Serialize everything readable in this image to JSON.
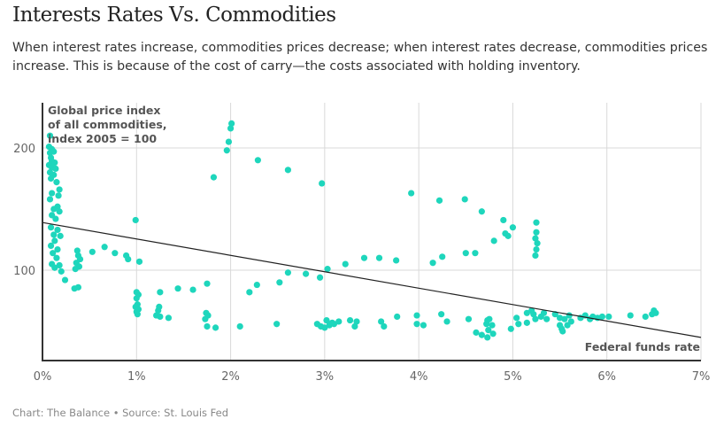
{
  "header": {
    "title": "Interests Rates Vs. Commodities",
    "subtitle": "When interest rates increase, commodities prices decrease; when interest rates decrease, commodities prices increase. This is because of the cost of carry—the costs associated with holding inventory."
  },
  "footer": "Chart: The Balance • Source: St. Louis Fed",
  "colors": {
    "point": "#1ed6bc",
    "trend": "#222222",
    "grid": "#d9d9d9",
    "axis": "#333333"
  },
  "chart_data": {
    "type": "scatter",
    "title": "Interests Rates Vs. Commodities",
    "xlabel": "Federal funds rate",
    "ylabel": "Global price index of all commodities, index 2005 = 100",
    "ylabel_lines": [
      "Global price index",
      "of all commodities,",
      "index 2005 = 100"
    ],
    "xlim": [
      0,
      7
    ],
    "ylim": [
      28,
      215
    ],
    "x_ticks": [
      0,
      1,
      2,
      3,
      4,
      5,
      6,
      7
    ],
    "x_tick_labels": [
      "0%",
      "1%",
      "2%",
      "3%",
      "4%",
      "5%",
      "6%",
      "7%"
    ],
    "y_ticks": [
      100,
      200
    ],
    "y_tick_labels": [
      "100",
      "200"
    ],
    "grid": true,
    "trendline": {
      "x": [
        0,
        7
      ],
      "y": [
        139,
        45
      ]
    },
    "points": [
      [
        0.08,
        210
      ],
      [
        0.07,
        201
      ],
      [
        0.1,
        199
      ],
      [
        0.08,
        196
      ],
      [
        0.12,
        197
      ],
      [
        0.09,
        192
      ],
      [
        0.1,
        189
      ],
      [
        0.13,
        188
      ],
      [
        0.07,
        186
      ],
      [
        0.1,
        184
      ],
      [
        0.14,
        183
      ],
      [
        0.08,
        180
      ],
      [
        0.12,
        178
      ],
      [
        0.09,
        175
      ],
      [
        0.15,
        172
      ],
      [
        0.18,
        166
      ],
      [
        0.1,
        163
      ],
      [
        0.17,
        161
      ],
      [
        0.08,
        158
      ],
      [
        0.16,
        152
      ],
      [
        0.12,
        150
      ],
      [
        0.18,
        148
      ],
      [
        0.1,
        145
      ],
      [
        0.14,
        142
      ],
      [
        0.09,
        135
      ],
      [
        0.16,
        133
      ],
      [
        0.12,
        129
      ],
      [
        0.19,
        128
      ],
      [
        0.13,
        124
      ],
      [
        0.09,
        120
      ],
      [
        0.16,
        117
      ],
      [
        0.11,
        114
      ],
      [
        0.15,
        110
      ],
      [
        0.1,
        105
      ],
      [
        0.18,
        104
      ],
      [
        0.13,
        102
      ],
      [
        0.2,
        99
      ],
      [
        0.24,
        92
      ],
      [
        0.37,
        116
      ],
      [
        0.38,
        112
      ],
      [
        0.4,
        109
      ],
      [
        0.36,
        106
      ],
      [
        0.39,
        103
      ],
      [
        0.35,
        101
      ],
      [
        0.34,
        85
      ],
      [
        0.38,
        86
      ],
      [
        0.53,
        115
      ],
      [
        0.66,
        119
      ],
      [
        0.77,
        114
      ],
      [
        0.89,
        112
      ],
      [
        0.91,
        109
      ],
      [
        0.99,
        141
      ],
      [
        1.03,
        107
      ],
      [
        1.0,
        82
      ],
      [
        1.02,
        80
      ],
      [
        1.0,
        77
      ],
      [
        1.01,
        72
      ],
      [
        0.99,
        70
      ],
      [
        1.02,
        68
      ],
      [
        1.0,
        66
      ],
      [
        1.01,
        64
      ],
      [
        1.25,
        82
      ],
      [
        1.24,
        70
      ],
      [
        1.23,
        67
      ],
      [
        1.21,
        63
      ],
      [
        1.25,
        62
      ],
      [
        1.34,
        61
      ],
      [
        1.44,
        85
      ],
      [
        1.6,
        84
      ],
      [
        1.75,
        89
      ],
      [
        1.74,
        65
      ],
      [
        1.76,
        63
      ],
      [
        1.73,
        60
      ],
      [
        1.75,
        54
      ],
      [
        1.84,
        53
      ],
      [
        1.82,
        176
      ],
      [
        1.98,
        205
      ],
      [
        1.96,
        198
      ],
      [
        2.0,
        216
      ],
      [
        2.01,
        220
      ],
      [
        2.2,
        82
      ],
      [
        2.1,
        54
      ],
      [
        2.28,
        88
      ],
      [
        2.29,
        190
      ],
      [
        2.52,
        90
      ],
      [
        2.49,
        56
      ],
      [
        2.61,
        98
      ],
      [
        2.61,
        182
      ],
      [
        2.8,
        97
      ],
      [
        2.97,
        171
      ],
      [
        2.95,
        94
      ],
      [
        3.03,
        101
      ],
      [
        2.92,
        56
      ],
      [
        2.96,
        54
      ],
      [
        3.0,
        53
      ],
      [
        3.05,
        55
      ],
      [
        3.1,
        56
      ],
      [
        3.02,
        59
      ],
      [
        3.08,
        57
      ],
      [
        3.15,
        58
      ],
      [
        3.22,
        105
      ],
      [
        3.27,
        59
      ],
      [
        3.32,
        54
      ],
      [
        3.34,
        58
      ],
      [
        3.42,
        110
      ],
      [
        3.58,
        110
      ],
      [
        3.6,
        58
      ],
      [
        3.63,
        54
      ],
      [
        3.76,
        108
      ],
      [
        3.77,
        62
      ],
      [
        3.92,
        163
      ],
      [
        3.98,
        63
      ],
      [
        3.98,
        56
      ],
      [
        4.05,
        55
      ],
      [
        4.15,
        106
      ],
      [
        4.22,
        157
      ],
      [
        4.25,
        111
      ],
      [
        4.24,
        64
      ],
      [
        4.3,
        58
      ],
      [
        4.49,
        158
      ],
      [
        4.5,
        114
      ],
      [
        4.53,
        60
      ],
      [
        4.6,
        114
      ],
      [
        4.61,
        49
      ],
      [
        4.67,
        47
      ],
      [
        4.72,
        56
      ],
      [
        4.73,
        59
      ],
      [
        4.75,
        60
      ],
      [
        4.74,
        51
      ],
      [
        4.78,
        55
      ],
      [
        4.79,
        48
      ],
      [
        4.73,
        45
      ],
      [
        4.67,
        148
      ],
      [
        4.8,
        124
      ],
      [
        4.9,
        141
      ],
      [
        4.92,
        130
      ],
      [
        4.95,
        128
      ],
      [
        5.0,
        135
      ],
      [
        4.98,
        52
      ],
      [
        5.06,
        56
      ],
      [
        5.04,
        61
      ],
      [
        5.15,
        57
      ],
      [
        5.15,
        65
      ],
      [
        5.2,
        67
      ],
      [
        5.22,
        64
      ],
      [
        5.24,
        60
      ],
      [
        5.25,
        139
      ],
      [
        5.25,
        131
      ],
      [
        5.24,
        126
      ],
      [
        5.26,
        122
      ],
      [
        5.25,
        117
      ],
      [
        5.24,
        112
      ],
      [
        5.3,
        62
      ],
      [
        5.33,
        65
      ],
      [
        5.36,
        60
      ],
      [
        5.45,
        64
      ],
      [
        5.5,
        61
      ],
      [
        5.5,
        55
      ],
      [
        5.52,
        52
      ],
      [
        5.55,
        60
      ],
      [
        5.58,
        55
      ],
      [
        5.53,
        50
      ],
      [
        5.6,
        63
      ],
      [
        5.62,
        58
      ],
      [
        5.72,
        61
      ],
      [
        5.77,
        63
      ],
      [
        5.82,
        60
      ],
      [
        5.85,
        62
      ],
      [
        5.9,
        61
      ],
      [
        5.95,
        62
      ],
      [
        6.02,
        62
      ],
      [
        6.25,
        63
      ],
      [
        6.41,
        62
      ],
      [
        6.5,
        67
      ],
      [
        6.52,
        65
      ],
      [
        6.48,
        64
      ]
    ]
  }
}
